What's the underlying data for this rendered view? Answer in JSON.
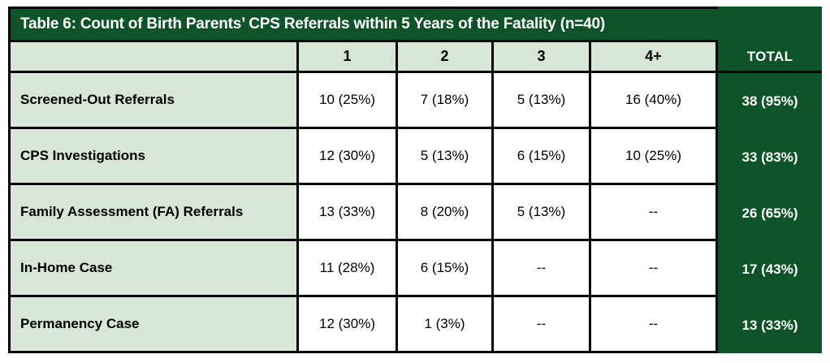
{
  "table": {
    "title": "Table 6: Count of Birth Parents’ CPS Referrals within 5 Years of the Fatality (n=40)",
    "columns": [
      "1",
      "2",
      "3",
      "4+"
    ],
    "total_label": "TOTAL",
    "rows": [
      {
        "label": "Screened-Out Referrals",
        "values": [
          "10 (25%)",
          "7 (18%)",
          "5 (13%)",
          "16 (40%)"
        ],
        "total": "38 (95%)"
      },
      {
        "label": "CPS Investigations",
        "values": [
          "12 (30%)",
          "5 (13%)",
          "6 (15%)",
          "10 (25%)"
        ],
        "total": "33 (83%)"
      },
      {
        "label": "Family Assessment (FA) Referrals",
        "values": [
          "13 (33%)",
          "8 (20%)",
          "5 (13%)",
          "--"
        ],
        "total": "26 (65%)"
      },
      {
        "label": "In-Home Case",
        "values": [
          "11 (28%)",
          "6 (15%)",
          "--",
          "--"
        ],
        "total": "17 (43%)"
      },
      {
        "label": "Permanency Case",
        "values": [
          "12 (30%)",
          "1 (3%)",
          "--",
          "--"
        ],
        "total": "13 (33%)"
      }
    ],
    "colors": {
      "dark_green": "#0F5328",
      "light_green": "#D7E6D7",
      "border": "#000000",
      "title_text": "#FFFFFF"
    }
  },
  "chart_data": {
    "type": "table",
    "title": "Table 6: Count of Birth Parents’ CPS Referrals within 5 Years of the Fatality (n=40)",
    "columns": [
      "",
      "1",
      "2",
      "3",
      "4+",
      "TOTAL"
    ],
    "rows": [
      [
        "Screened-Out Referrals",
        "10 (25%)",
        "7 (18%)",
        "5 (13%)",
        "16 (40%)",
        "38 (95%)"
      ],
      [
        "CPS Investigations",
        "12 (30%)",
        "5 (13%)",
        "6 (15%)",
        "10 (25%)",
        "33 (83%)"
      ],
      [
        "Family Assessment (FA) Referrals",
        "13 (33%)",
        "8 (20%)",
        "5 (13%)",
        "--",
        "26 (65%)"
      ],
      [
        "In-Home Case",
        "11 (28%)",
        "6 (15%)",
        "--",
        "--",
        "17 (43%)"
      ],
      [
        "Permanency Case",
        "12 (30%)",
        "1 (3%)",
        "--",
        "--",
        "13 (33%)"
      ]
    ]
  }
}
